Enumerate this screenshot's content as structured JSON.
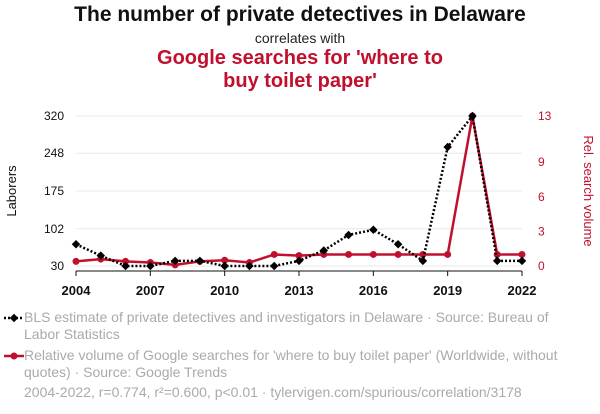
{
  "header": {
    "title": "The number of private detectives in Delaware",
    "subtitle": "correlates with",
    "title2": "Google searches for 'where to buy toilet paper'"
  },
  "colors": {
    "series1": "#000000",
    "series2": "#c0102e",
    "legend_text": "#aaaaaa"
  },
  "chart_data": {
    "type": "line",
    "x": [
      2004,
      2005,
      2006,
      2007,
      2008,
      2009,
      2010,
      2011,
      2012,
      2013,
      2014,
      2015,
      2016,
      2017,
      2018,
      2019,
      2020,
      2021,
      2022
    ],
    "xticks": [
      "2004",
      "2007",
      "2010",
      "2013",
      "2016",
      "2019",
      "2022"
    ],
    "ylabel_left": "Laborers",
    "ylabel_right": "Rel. search volume",
    "yticks_left": [
      "320",
      "248",
      "175",
      "102",
      "30"
    ],
    "yticks_right": [
      "13",
      "9",
      "6",
      "3",
      "0"
    ],
    "ylim_left": [
      30,
      320
    ],
    "ylim_right": [
      0,
      13
    ],
    "grid": "horizontal",
    "series": [
      {
        "name": "BLS estimate of private detectives and investigators in Delaware · Source: Bureau of Labor Statistics",
        "axis": "left",
        "style": "dotted",
        "marker": "diamond",
        "values": [
          72,
          50,
          30,
          30,
          40,
          40,
          30,
          30,
          30,
          40,
          60,
          90,
          100,
          72,
          40,
          260,
          320,
          40,
          40
        ]
      },
      {
        "name": "Relative volume of Google searches for 'where to buy toilet paper' (Worldwide, without quotes) · Source: Google Trends",
        "axis": "right",
        "style": "solid",
        "marker": "circle",
        "values": [
          0.4,
          0.6,
          0.4,
          0.3,
          0.1,
          0.4,
          0.5,
          0.3,
          1.0,
          0.9,
          1.0,
          1.0,
          1.0,
          1.0,
          1.0,
          1.0,
          13.0,
          1.0,
          1.0
        ]
      }
    ]
  },
  "footer": "2004-2022, r=0.774, r²=0.600, p<0.01 · tylervigen.com/spurious/correlation/3178"
}
